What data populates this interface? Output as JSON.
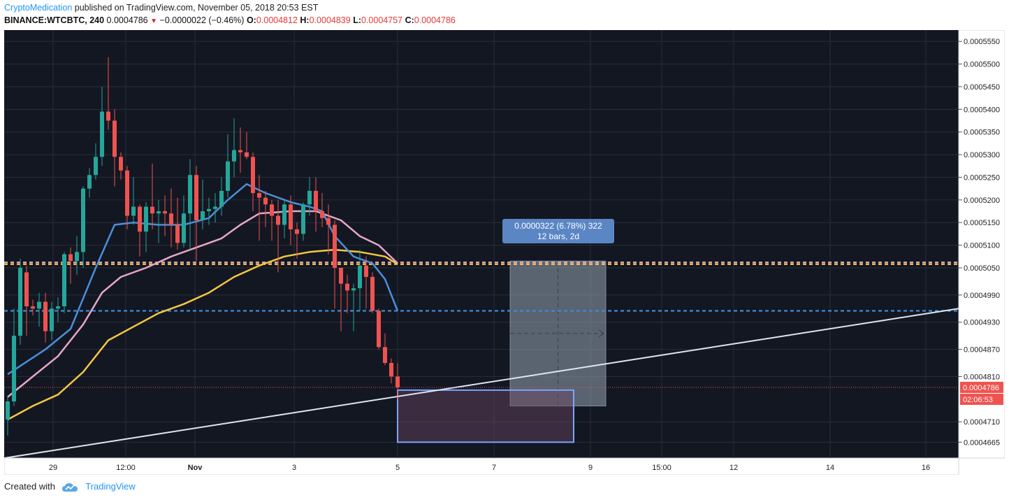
{
  "header": {
    "author": "CryptoMedication",
    "published_text": "published on TradingView.com, November 05, 2018 20:53 EST",
    "symbol": "BINANCE:WTCBTC, 240",
    "last": "0.0004786",
    "change": "−0.0000022 (−0.46%)",
    "o_label": "O:",
    "o": "0.0004812",
    "h_label": "H:",
    "h": "0.0004839",
    "l_label": "L:",
    "l": "0.0004757",
    "c_label": "C:",
    "c": "0.0004786"
  },
  "footer": {
    "created_with": "Created with",
    "brand": "TradingView"
  },
  "colors": {
    "background": "#131722",
    "grid": "#2a2e39",
    "up": "#26a69a",
    "down": "#ef5350",
    "ma_fast": "#4a90d9",
    "ma_mid": "#e6a8c8",
    "ma_slow": "#f5c842",
    "trendline": "#dfe6f0",
    "support_blue": "#3d8bd4",
    "resistance_yellow": "#f5c842",
    "resistance_pink": "#e6a8c8"
  },
  "chart_data": {
    "type": "candlestick",
    "y_ticks": [
      "0.0005550",
      "0.0005500",
      "0.0005450",
      "0.0005400",
      "0.0005350",
      "0.0005300",
      "0.0005250",
      "0.0005200",
      "0.0005150",
      "0.0005100",
      "0.0005050",
      "0.0004990",
      "0.0004930",
      "0.0004870",
      "0.0004810",
      "0.0004710",
      "0.0004665"
    ],
    "x_ticks": [
      "29",
      "12:00",
      "Nov",
      "3",
      "5",
      "7",
      "9",
      "15:00",
      "12",
      "14",
      "16"
    ],
    "ylim": [
      0.000463,
      0.0005575
    ],
    "last_price_label": "0.0004786",
    "countdown_label": "02:06:53",
    "measure_label_line1": "0.0000322 (6.78%) 322",
    "measure_label_line2": "12 bars, 2d",
    "candles": [
      [
        0.0004715,
        0.0004755,
        0.000468,
        0.0004765
      ],
      [
        0.0004755,
        0.00049,
        0.0004745,
        0.000496
      ],
      [
        0.00049,
        0.000505,
        0.000488,
        0.000507
      ],
      [
        0.000504,
        0.0004965,
        0.00049,
        0.0005055
      ],
      [
        0.0004965,
        0.000496,
        0.0004945,
        0.000498
      ],
      [
        0.000496,
        0.0004975,
        0.000492,
        0.0004995
      ],
      [
        0.0004975,
        0.000491,
        0.0004885,
        0.0004995
      ],
      [
        0.000491,
        0.000496,
        0.000489,
        0.0004975
      ],
      [
        0.000496,
        0.0004965,
        0.000493,
        0.0004985
      ],
      [
        0.0004965,
        0.000508,
        0.000495,
        0.0005085
      ],
      [
        0.000508,
        0.0005065,
        0.0005015,
        0.0005095
      ],
      [
        0.0005065,
        0.0005085,
        0.0005035,
        0.000512
      ],
      [
        0.0005085,
        0.0005225,
        0.000505,
        0.000523
      ],
      [
        0.0005225,
        0.0005255,
        0.0005205,
        0.000527
      ],
      [
        0.0005255,
        0.0005295,
        0.0005245,
        0.0005325
      ],
      [
        0.0005295,
        0.0005395,
        0.0005275,
        0.000545
      ],
      [
        0.0005395,
        0.0005375,
        0.0005355,
        0.0005515
      ],
      [
        0.0005375,
        0.0005295,
        0.000523,
        0.00054
      ],
      [
        0.0005295,
        0.0005265,
        0.0005245,
        0.0005305
      ],
      [
        0.0005265,
        0.0005165,
        0.0005135,
        0.0005275
      ],
      [
        0.0005165,
        0.0005185,
        0.0005145,
        0.000525
      ],
      [
        0.0005185,
        0.000513,
        0.0005075,
        0.000519
      ],
      [
        0.000513,
        0.0005185,
        0.0005085,
        0.0005195
      ],
      [
        0.0005185,
        0.000517,
        0.0005135,
        0.000528
      ],
      [
        0.000517,
        0.0005175,
        0.0005105,
        0.00052
      ],
      [
        0.0005175,
        0.000517,
        0.000512,
        0.000521
      ],
      [
        0.000517,
        0.0005145,
        0.0005095,
        0.0005225
      ],
      [
        0.0005145,
        0.0005105,
        0.000509,
        0.0005205
      ],
      [
        0.0005105,
        0.000517,
        0.0005095,
        0.000521
      ],
      [
        0.000517,
        0.0005255,
        0.000509,
        0.000529
      ],
      [
        0.0005255,
        0.0005155,
        0.0005065,
        0.0005275
      ],
      [
        0.0005155,
        0.0005175,
        0.0005135,
        0.0005245
      ],
      [
        0.0005175,
        0.000518,
        0.0005145,
        0.0005205
      ],
      [
        0.000518,
        0.0005185,
        0.000515,
        0.0005215
      ],
      [
        0.0005185,
        0.000522,
        0.0005165,
        0.000525
      ],
      [
        0.000522,
        0.0005285,
        0.0005205,
        0.0005345
      ],
      [
        0.0005285,
        0.000531,
        0.000525,
        0.000538
      ],
      [
        0.000531,
        0.0005305,
        0.000526,
        0.000536
      ],
      [
        0.0005305,
        0.0005295,
        0.000529,
        0.000535
      ],
      [
        0.0005295,
        0.0005215,
        0.0005175,
        0.0005305
      ],
      [
        0.0005215,
        0.0005205,
        0.000511,
        0.0005255
      ],
      [
        0.0005205,
        0.000519,
        0.000514,
        0.000522
      ],
      [
        0.000519,
        0.0005165,
        0.000511,
        0.00052
      ],
      [
        0.0005165,
        0.0005145,
        0.000504,
        0.00052
      ],
      [
        0.0005145,
        0.000519,
        0.0005115,
        0.00052
      ],
      [
        0.000519,
        0.0005135,
        0.00051,
        0.000521
      ],
      [
        0.0005135,
        0.0005125,
        0.000507,
        0.000515
      ],
      [
        0.0005125,
        0.000519,
        0.000511,
        0.0005195
      ],
      [
        0.000519,
        0.000522,
        0.0005165,
        0.000525
      ],
      [
        0.000522,
        0.0005175,
        0.000513,
        0.000525
      ],
      [
        0.0005175,
        0.000516,
        0.000514,
        0.0005215
      ],
      [
        0.000516,
        0.0005145,
        0.000508,
        0.000519
      ],
      [
        0.0005145,
        0.000505,
        0.000496,
        0.0005155
      ],
      [
        0.000505,
        0.0005015,
        0.000491,
        0.000505
      ],
      [
        0.0005015,
        0.0005,
        0.000495,
        0.0005035
      ],
      [
        0.0005,
        0.0005005,
        0.000491,
        0.0005015
      ],
      [
        0.0005005,
        0.0005055,
        0.0004955,
        0.000509
      ],
      [
        0.0005055,
        0.000503,
        0.000496,
        0.0005075
      ],
      [
        0.000503,
        0.0004955,
        0.000495,
        0.000504
      ],
      [
        0.0004955,
        0.0004875,
        0.000487,
        0.000496
      ],
      [
        0.0004875,
        0.000484,
        0.0004835,
        0.0004905
      ],
      [
        0.000484,
        0.000481,
        0.0004795,
        0.000485
      ],
      [
        0.000481,
        0.0004786,
        0.0004757,
        0.0004839
      ]
    ],
    "ma_fast": [
      [
        0,
        0.0004815
      ],
      [
        6,
        0.000487
      ],
      [
        10,
        0.0004915
      ],
      [
        14,
        0.000505
      ],
      [
        17,
        0.0005145
      ],
      [
        20,
        0.000515
      ],
      [
        24,
        0.0005145
      ],
      [
        28,
        0.0005145
      ],
      [
        32,
        0.000516
      ],
      [
        35,
        0.00052
      ],
      [
        38,
        0.0005235
      ],
      [
        41,
        0.0005215
      ],
      [
        45,
        0.0005195
      ],
      [
        48,
        0.0005185
      ],
      [
        50,
        0.0005175
      ],
      [
        52,
        0.000512
      ],
      [
        55,
        0.0005075
      ],
      [
        58,
        0.000506
      ],
      [
        60,
        0.0005025
      ],
      [
        62,
        0.0004955
      ]
    ],
    "ma_mid": [
      [
        0,
        0.0004765
      ],
      [
        4,
        0.000481
      ],
      [
        8,
        0.0004855
      ],
      [
        12,
        0.0004925
      ],
      [
        15,
        0.0004995
      ],
      [
        18,
        0.000503
      ],
      [
        22,
        0.000505
      ],
      [
        26,
        0.0005075
      ],
      [
        30,
        0.0005095
      ],
      [
        34,
        0.0005115
      ],
      [
        37,
        0.0005145
      ],
      [
        40,
        0.000517
      ],
      [
        45,
        0.0005175
      ],
      [
        49,
        0.0005175
      ],
      [
        53,
        0.0005155
      ],
      [
        56,
        0.000512
      ],
      [
        59,
        0.00051
      ],
      [
        62,
        0.000506
      ]
    ],
    "ma_slow": [
      [
        0,
        0.0004715
      ],
      [
        4,
        0.0004745
      ],
      [
        8,
        0.000477
      ],
      [
        12,
        0.000482
      ],
      [
        16,
        0.000489
      ],
      [
        20,
        0.000492
      ],
      [
        24,
        0.000495
      ],
      [
        28,
        0.000497
      ],
      [
        32,
        0.0004995
      ],
      [
        36,
        0.000503
      ],
      [
        40,
        0.0005055
      ],
      [
        44,
        0.0005075
      ],
      [
        48,
        0.0005085
      ],
      [
        52,
        0.000509
      ],
      [
        56,
        0.0005085
      ],
      [
        60,
        0.0005075
      ],
      [
        62,
        0.0005058
      ]
    ],
    "hlines": [
      {
        "value": 0.0005058,
        "color_key": "resistance_yellow"
      },
      {
        "value": 0.0005062,
        "color_key": "resistance_pink"
      },
      {
        "value": 0.0004955,
        "color_key": "support_blue"
      }
    ],
    "trendline": {
      "from": [
        0.000463,
        0.00042
      ],
      "to": [
        0.000496,
        1.0
      ]
    },
    "demand_box": {
      "price_top": 0.000478,
      "price_bottom": 0.0004665
    },
    "measure_box": {
      "price_top": 0.0005065,
      "price_bottom": 0.0004745
    }
  }
}
